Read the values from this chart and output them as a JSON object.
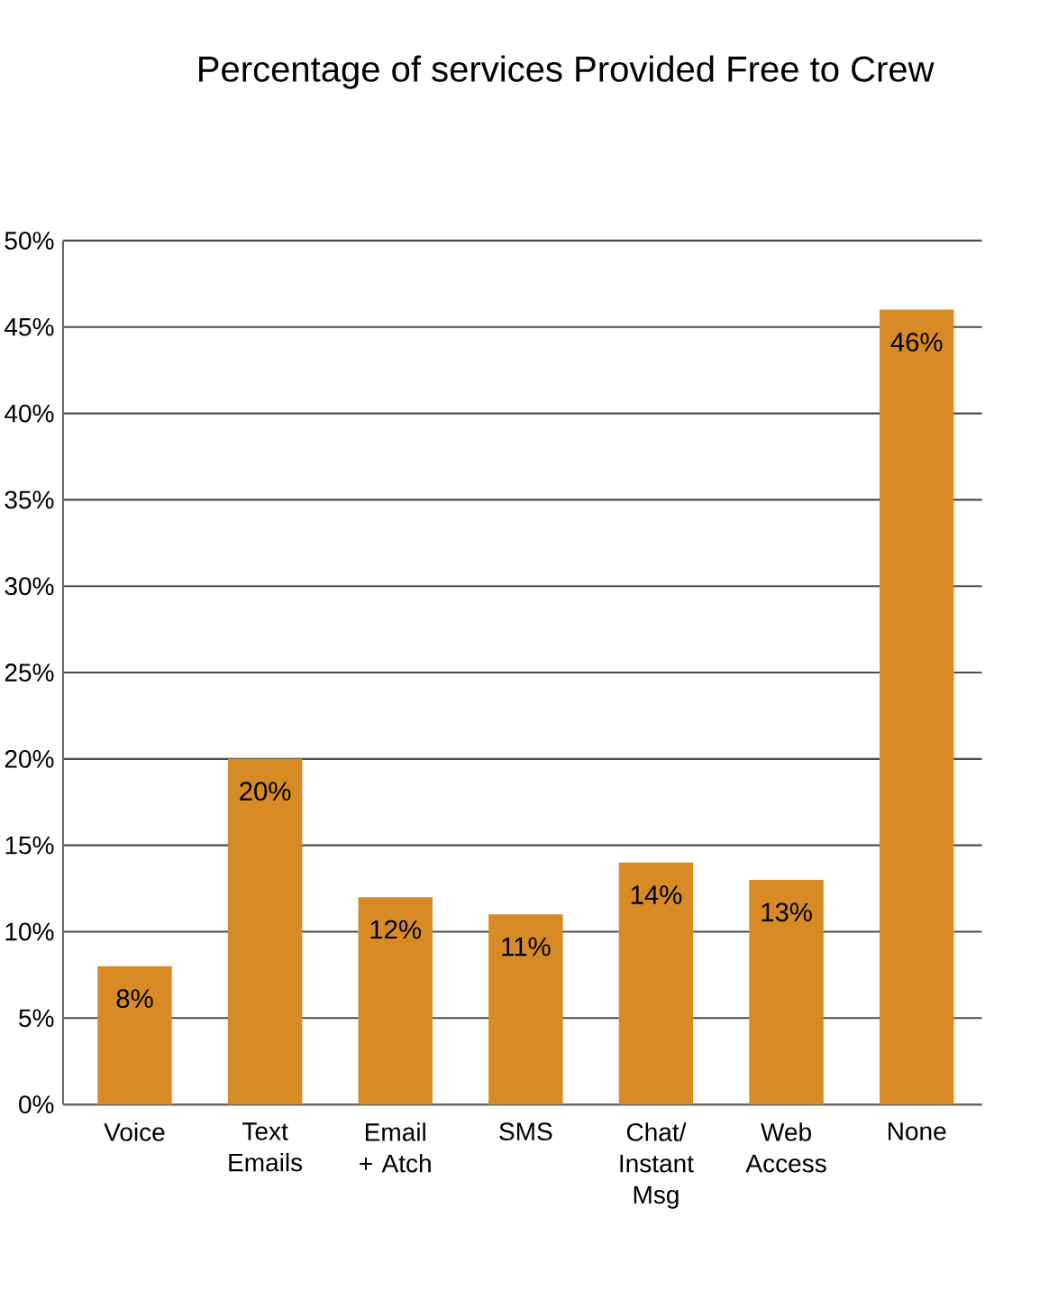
{
  "chart_data": {
    "type": "bar",
    "title": "Percentage of services Provided Free to Crew",
    "categories": [
      "Voice",
      "Text Emails",
      "Email + Atch",
      "SMS",
      "Chat/ Instant Msg",
      "Web Access",
      "None"
    ],
    "values": [
      8,
      20,
      12,
      11,
      14,
      13,
      46
    ],
    "value_labels": [
      "8%",
      "20%",
      "12%",
      "11%",
      "14%",
      "13%",
      "46%"
    ],
    "color": "#d88b25",
    "ylim": [
      0,
      50
    ],
    "yticks": [
      {
        "value": 0,
        "label": "0%"
      },
      {
        "value": 5,
        "label": "5%"
      },
      {
        "value": 10,
        "label": "10%"
      },
      {
        "value": 15,
        "label": "15%"
      },
      {
        "value": 20,
        "label": "20%"
      },
      {
        "value": 25,
        "label": "25%"
      },
      {
        "value": 30,
        "label": "30%"
      },
      {
        "value": 35,
        "label": "35%"
      },
      {
        "value": 40,
        "label": "40%"
      },
      {
        "value": 45,
        "label": "45%"
      },
      {
        "value": 50,
        "label": "50%"
      }
    ],
    "grid": "y"
  }
}
